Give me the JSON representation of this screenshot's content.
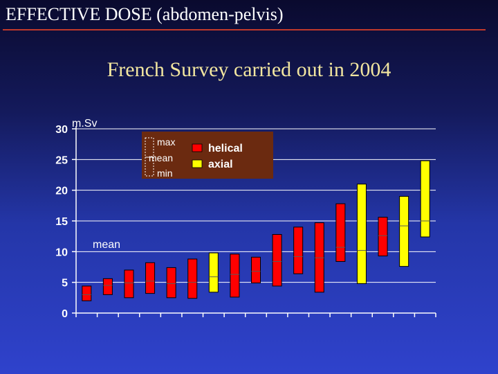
{
  "slide": {
    "title": "EFFECTIVE DOSE (abdomen-pelvis)",
    "subtitle": "French Survey carried out in 2004"
  },
  "colors": {
    "helical": "#ff0000",
    "axial": "#ffff00",
    "legend_bg": "#6b2a10",
    "axis": "#ffffff",
    "mean_line": "#ffffff"
  },
  "chart_data": {
    "type": "box",
    "ylabel": "m.Sv",
    "ylim": [
      0,
      30
    ],
    "yticks": [
      "0",
      "5",
      "10",
      "15",
      "20",
      "25",
      "30"
    ],
    "grid": true,
    "mean_annotation": "mean",
    "legend": {
      "key": {
        "max": "max",
        "mean": "mean",
        "min": "min"
      },
      "series": [
        {
          "name": "helical",
          "color": "#ff0000"
        },
        {
          "name": "axial",
          "color": "#ffff00"
        }
      ],
      "placement": "top-center"
    },
    "boxes": [
      {
        "type": "helical",
        "min": 2.0,
        "mean": 3.0,
        "max": 4.4
      },
      {
        "type": "helical",
        "min": 3.0,
        "mean": 4.5,
        "max": 5.6
      },
      {
        "type": "helical",
        "min": 2.5,
        "mean": 4.9,
        "max": 7.0
      },
      {
        "type": "helical",
        "min": 3.2,
        "mean": 5.2,
        "max": 8.2
      },
      {
        "type": "helical",
        "min": 2.5,
        "mean": 4.8,
        "max": 7.4
      },
      {
        "type": "helical",
        "min": 2.4,
        "mean": 5.0,
        "max": 8.8
      },
      {
        "type": "axial",
        "min": 3.4,
        "mean": 5.9,
        "max": 9.8
      },
      {
        "type": "helical",
        "min": 2.6,
        "mean": 6.3,
        "max": 9.6
      },
      {
        "type": "helical",
        "min": 4.9,
        "mean": 6.8,
        "max": 9.1
      },
      {
        "type": "helical",
        "min": 4.4,
        "mean": 8.4,
        "max": 12.8
      },
      {
        "type": "helical",
        "min": 6.4,
        "mean": 9.2,
        "max": 14.0
      },
      {
        "type": "helical",
        "min": 3.4,
        "mean": 9.0,
        "max": 14.7
      },
      {
        "type": "helical",
        "min": 8.4,
        "mean": 10.7,
        "max": 17.8
      },
      {
        "type": "axial",
        "min": 4.8,
        "mean": 10.2,
        "max": 21.0
      },
      {
        "type": "helical",
        "min": 9.3,
        "mean": 12.6,
        "max": 15.6
      },
      {
        "type": "axial",
        "min": 7.6,
        "mean": 14.2,
        "max": 19.0
      },
      {
        "type": "axial",
        "min": 12.4,
        "mean": 15.0,
        "max": 24.8
      }
    ]
  }
}
